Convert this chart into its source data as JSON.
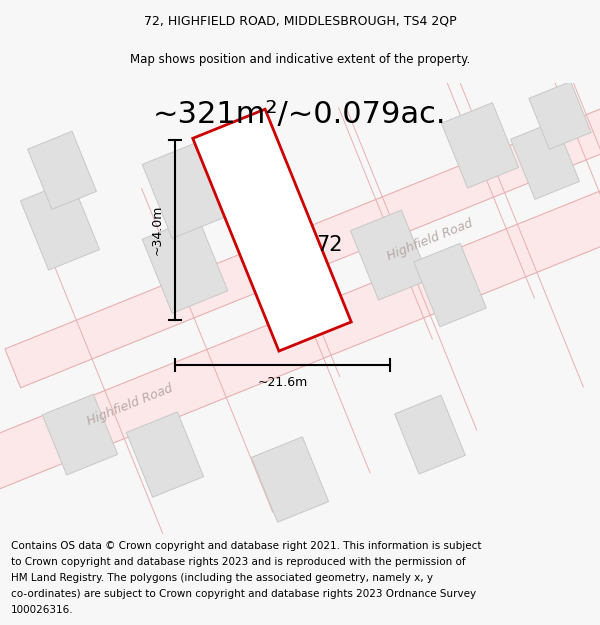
{
  "title_line1": "72, HIGHFIELD ROAD, MIDDLESBROUGH, TS4 2QP",
  "title_line2": "Map shows position and indicative extent of the property.",
  "area_text": "~321m²/~0.079ac.",
  "label_number": "72",
  "dim_height": "~34.0m",
  "dim_width": "~21.6m",
  "road_label_lower": "Highfield Road",
  "road_label_upper": "Highfield Road",
  "footer_lines": [
    "Contains OS data © Crown copyright and database right 2021. This information is subject",
    "to Crown copyright and database rights 2023 and is reproduced with the permission of",
    "HM Land Registry. The polygons (including the associated geometry, namely x, y",
    "co-ordinates) are subject to Crown copyright and database rights 2023 Ordnance Survey",
    "100026316."
  ],
  "bg_color": "#f7f7f7",
  "map_bg_color": "#ffffff",
  "road_fill_color": "#fce8e8",
  "road_edge_color": "#e8b0b0",
  "plot_line_color": "#cc0000",
  "building_fill": "#e0e0e0",
  "building_edge": "#c8c8c8",
  "road_ang": 22,
  "title_fontsize": 9,
  "subtitle_fontsize": 8.5,
  "area_fontsize": 22,
  "label_fontsize": 15,
  "dim_fontsize": 9,
  "road_label_fontsize": 9,
  "footer_fontsize": 7.5
}
